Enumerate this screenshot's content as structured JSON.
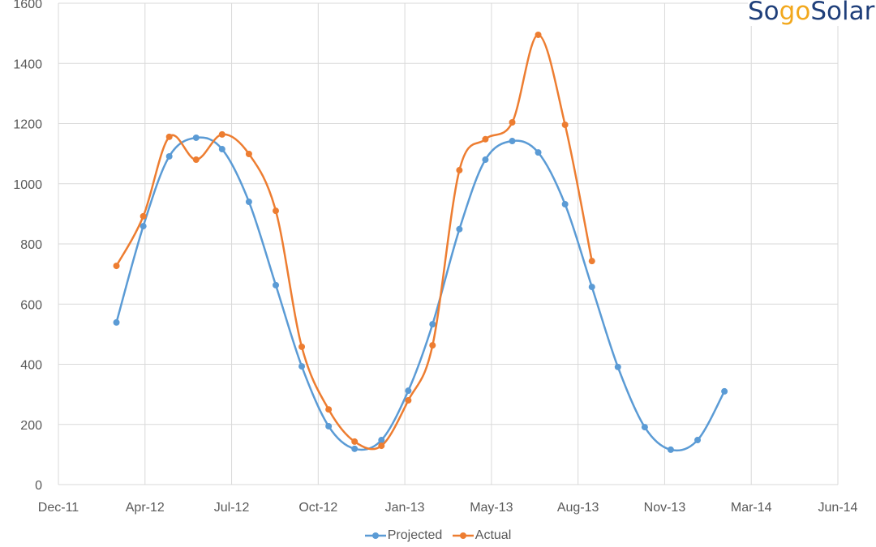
{
  "logo": {
    "text": "SogoSolar",
    "part1": "Sogo",
    "part2": "Solar"
  },
  "chart_data": {
    "type": "line",
    "smooth": true,
    "title": "",
    "xlabel": "",
    "ylabel": "",
    "ylim": [
      0,
      1600
    ],
    "yticks": [
      0,
      200,
      400,
      600,
      800,
      1000,
      1200,
      1400,
      1600
    ],
    "xlim": [
      "2011-12-25",
      "2014-06-12"
    ],
    "xtick_labels": [
      "Dec-11",
      "Apr-12",
      "Jul-12",
      "Oct-12",
      "Jan-13",
      "May-13",
      "Aug-13",
      "Nov-13",
      "Mar-14",
      "Jun-14"
    ],
    "grid": true,
    "legend": "bottom",
    "series": [
      {
        "name": "Projected",
        "color": "#5b9bd5",
        "x": [
          "2012-03",
          "2012-04",
          "2012-05",
          "2012-06",
          "2012-07",
          "2012-08",
          "2012-09",
          "2012-10",
          "2012-11",
          "2012-12",
          "2013-01",
          "2013-02",
          "2013-03",
          "2013-04",
          "2013-05",
          "2013-06",
          "2013-07",
          "2013-08",
          "2013-09",
          "2013-10",
          "2013-11",
          "2013-12",
          "2014-01",
          "2014-02"
        ],
        "values": [
          539,
          859,
          1091,
          1153,
          1115,
          940,
          663,
          393,
          194,
          119,
          148,
          312,
          533,
          849,
          1080,
          1142,
          1104,
          932,
          657,
          391,
          191,
          116,
          148,
          310
        ]
      },
      {
        "name": "Actual",
        "color": "#ed7d31",
        "x": [
          "2012-03",
          "2012-04",
          "2012-05",
          "2012-06",
          "2012-07",
          "2012-08",
          "2012-09",
          "2012-10",
          "2012-11",
          "2012-12",
          "2013-01",
          "2013-02",
          "2013-03",
          "2013-04",
          "2013-05",
          "2013-06",
          "2013-07",
          "2013-08",
          "2013-09"
        ],
        "values": [
          727,
          892,
          1156,
          1080,
          1164,
          1099,
          910,
          458,
          250,
          143,
          129,
          280,
          463,
          1045,
          1148,
          1204,
          1495,
          1196,
          743
        ]
      }
    ]
  }
}
